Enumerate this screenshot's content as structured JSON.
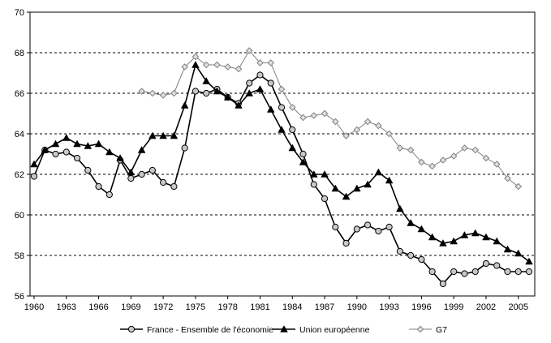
{
  "chart_data": {
    "type": "line",
    "title": "",
    "xlabel": "",
    "ylabel": "",
    "ylim": [
      56,
      70
    ],
    "yticks": [
      56,
      58,
      60,
      62,
      64,
      66,
      68,
      70
    ],
    "xlim": [
      1960,
      2006
    ],
    "xticks": [
      1960,
      1963,
      1966,
      1969,
      1972,
      1975,
      1978,
      1981,
      1984,
      1987,
      1990,
      1993,
      1996,
      1999,
      2002,
      2005
    ],
    "grid": "horizontal dashed",
    "legend_position": "bottom",
    "series": [
      {
        "name": "France - Ensemble de l'économie",
        "color": "#000000",
        "marker": "circle",
        "x": [
          1960,
          1961,
          1962,
          1963,
          1964,
          1965,
          1966,
          1967,
          1968,
          1969,
          1970,
          1971,
          1972,
          1973,
          1974,
          1975,
          1976,
          1977,
          1978,
          1979,
          1980,
          1981,
          1982,
          1983,
          1984,
          1985,
          1986,
          1987,
          1988,
          1989,
          1990,
          1991,
          1992,
          1993,
          1994,
          1995,
          1996,
          1997,
          1998,
          1999,
          2000,
          2001,
          2002,
          2003,
          2004,
          2005,
          2006
        ],
        "values": [
          61.9,
          63.2,
          63.0,
          63.1,
          62.8,
          62.2,
          61.4,
          61.0,
          62.7,
          61.8,
          62.0,
          62.2,
          61.6,
          61.4,
          63.3,
          66.1,
          66.0,
          66.2,
          65.8,
          65.5,
          66.5,
          66.9,
          66.5,
          65.3,
          64.2,
          63.0,
          61.5,
          60.8,
          59.4,
          58.6,
          59.3,
          59.5,
          59.2,
          59.4,
          58.2,
          58.0,
          57.8,
          57.2,
          56.6,
          57.2,
          57.1,
          57.2,
          57.6,
          57.5,
          57.2,
          57.2,
          57.2
        ]
      },
      {
        "name": "Union européenne",
        "color": "#000000",
        "marker": "triangle",
        "x": [
          1960,
          1961,
          1962,
          1963,
          1964,
          1965,
          1966,
          1967,
          1968,
          1969,
          1970,
          1971,
          1972,
          1973,
          1974,
          1975,
          1976,
          1977,
          1978,
          1979,
          1980,
          1981,
          1982,
          1983,
          1984,
          1985,
          1986,
          1987,
          1988,
          1989,
          1990,
          1991,
          1992,
          1993,
          1994,
          1995,
          1996,
          1997,
          1998,
          1999,
          2000,
          2001,
          2002,
          2003,
          2004,
          2005,
          2006
        ],
        "values": [
          62.5,
          63.2,
          63.5,
          63.8,
          63.5,
          63.4,
          63.5,
          63.1,
          62.8,
          62.1,
          63.2,
          63.9,
          63.9,
          63.9,
          65.4,
          67.4,
          66.6,
          66.1,
          65.8,
          65.4,
          66.0,
          66.2,
          65.2,
          64.2,
          63.3,
          62.6,
          62.0,
          62.0,
          61.3,
          60.9,
          61.3,
          61.5,
          62.1,
          61.7,
          60.3,
          59.6,
          59.3,
          58.9,
          58.6,
          58.7,
          59.0,
          59.1,
          58.9,
          58.7,
          58.3,
          58.1,
          57.7
        ]
      },
      {
        "name": "G7",
        "color": "#808080",
        "marker": "diamond",
        "x": [
          1970,
          1971,
          1972,
          1973,
          1974,
          1975,
          1976,
          1977,
          1978,
          1979,
          1980,
          1981,
          1982,
          1983,
          1984,
          1985,
          1986,
          1987,
          1988,
          1989,
          1990,
          1991,
          1992,
          1993,
          1994,
          1995,
          1996,
          1997,
          1998,
          1999,
          2000,
          2001,
          2002,
          2003,
          2004,
          2005
        ],
        "values": [
          66.1,
          66.0,
          65.9,
          66.0,
          67.3,
          67.8,
          67.4,
          67.4,
          67.3,
          67.2,
          68.1,
          67.5,
          67.5,
          66.2,
          65.3,
          64.8,
          64.9,
          65.0,
          64.6,
          63.9,
          64.2,
          64.6,
          64.4,
          64.0,
          63.3,
          63.2,
          62.6,
          62.4,
          62.7,
          62.9,
          63.3,
          63.2,
          62.8,
          62.5,
          61.8,
          61.4
        ]
      }
    ]
  }
}
